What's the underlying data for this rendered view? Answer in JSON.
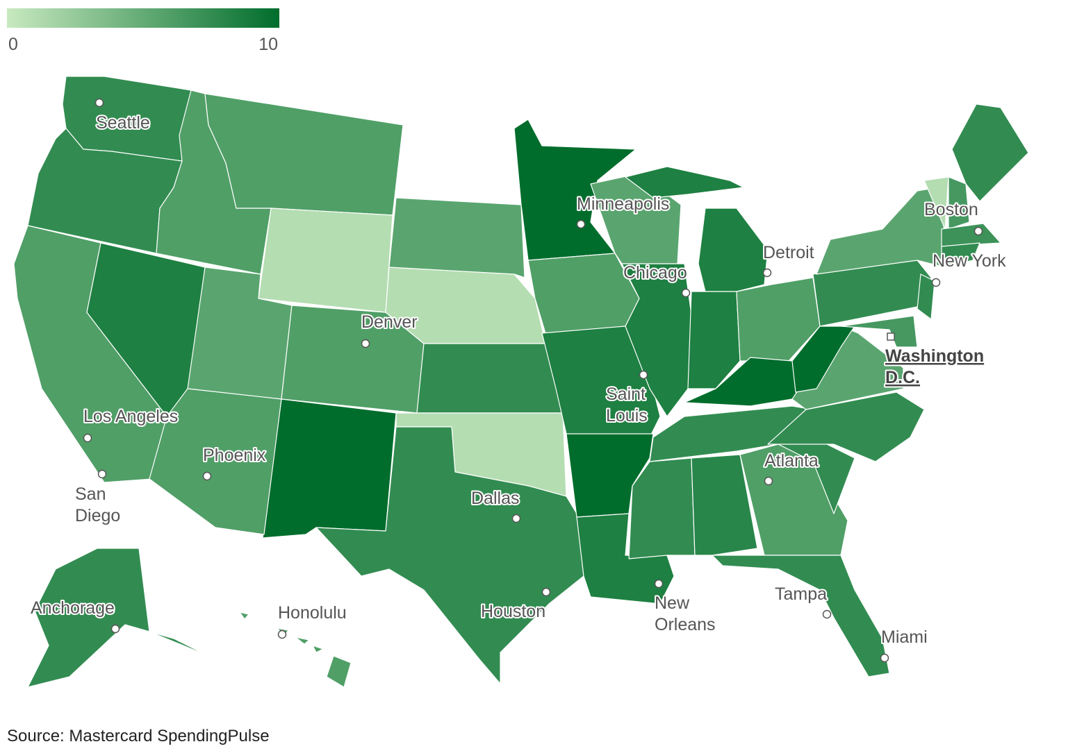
{
  "chart_data": {
    "type": "choropleth",
    "legend": {
      "range": [
        0,
        10
      ],
      "ticks": [
        0,
        10
      ],
      "colors": [
        "#c8e9c0",
        "#006d2c"
      ]
    },
    "values": [
      7.5,
      7.5,
      6,
      8.5,
      6,
      6,
      1,
      5.5,
      6,
      10,
      6,
      1,
      5.5,
      7.5,
      1,
      7.5,
      10,
      6,
      8.5,
      10,
      8.5,
      5.5,
      8.5,
      8.5,
      8.5,
      7.5,
      6,
      10,
      7.5,
      8,
      6,
      7.5,
      7.5,
      7.5,
      5.5,
      10,
      7.5,
      5.5,
      7.5,
      6.5,
      7.5,
      1,
      6.5,
      7,
      7.5,
      7.5,
      6
    ],
    "cities": [
      {
        "label": [
          "Seattle"
        ]
      },
      {
        "label": [
          "Minneapolis"
        ]
      },
      {
        "label": [
          "Boston"
        ]
      },
      {
        "label": [
          "Detroit"
        ]
      },
      {
        "label": [
          "Chicago"
        ]
      },
      {
        "label": [
          "New York"
        ]
      },
      {
        "label": [
          "Denver"
        ]
      },
      {
        "label": [
          "Washington",
          "D.C."
        ]
      },
      {
        "label": [
          "Saint",
          "Louis"
        ]
      },
      {
        "label": [
          "Los Angeles"
        ]
      },
      {
        "label": [
          "Phoenix"
        ]
      },
      {
        "label": [
          "Atlanta"
        ]
      },
      {
        "label": [
          "San",
          "Diego"
        ]
      },
      {
        "label": [
          "Dallas"
        ]
      },
      {
        "label": [
          "Houston"
        ]
      },
      {
        "label": [
          "New",
          "Orleans"
        ]
      },
      {
        "label": [
          "Tampa"
        ]
      },
      {
        "label": [
          "Anchorage"
        ]
      },
      {
        "label": [
          "Honolulu"
        ]
      },
      {
        "label": [
          "Miami"
        ]
      }
    ],
    "source": "Source: Mastercard SpendingPulse"
  }
}
